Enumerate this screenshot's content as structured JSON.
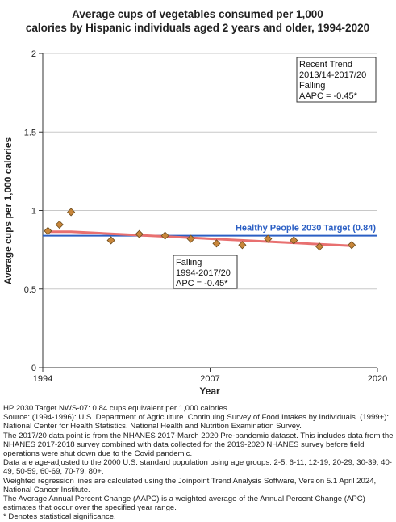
{
  "chart_data": {
    "type": "scatter",
    "title_lines": [
      "Average cups of vegetables consumed per 1,000",
      "calories by Hispanic individuals aged 2 years and older, 1994-2020"
    ],
    "xlabel": "Year",
    "ylabel": "Average cups per 1,000 calories",
    "xlim": [
      1994,
      2020
    ],
    "ylim": [
      0,
      2
    ],
    "x_ticks": [
      1994,
      2007,
      2020
    ],
    "x_tick_labels": [
      "1994",
      "2007",
      "2020"
    ],
    "y_ticks": [
      0,
      0.5,
      1,
      1.5,
      2
    ],
    "y_tick_labels": [
      "0",
      "0.5",
      "1",
      "1.5",
      "2"
    ],
    "grid": "horizontal",
    "points": [
      {
        "x": 1994.4,
        "y": 0.87
      },
      {
        "x": 1995.3,
        "y": 0.91
      },
      {
        "x": 1996.2,
        "y": 0.99
      },
      {
        "x": 1999.3,
        "y": 0.81
      },
      {
        "x": 2001.5,
        "y": 0.85
      },
      {
        "x": 2003.5,
        "y": 0.84
      },
      {
        "x": 2005.5,
        "y": 0.82
      },
      {
        "x": 2007.5,
        "y": 0.79
      },
      {
        "x": 2009.5,
        "y": 0.78
      },
      {
        "x": 2011.5,
        "y": 0.82
      },
      {
        "x": 2013.5,
        "y": 0.81
      },
      {
        "x": 2015.5,
        "y": 0.77
      },
      {
        "x": 2018.0,
        "y": 0.78
      }
    ],
    "point_color": "#c8863a",
    "trend_line": {
      "x": [
        1994.4,
        1996.2,
        2018.0
      ],
      "y": [
        0.865,
        0.865,
        0.775
      ],
      "color": "#e87070"
    },
    "target": {
      "value": 0.84,
      "label": "Healthy People 2030 Target (0.84)",
      "color": "#2b5fc4"
    },
    "annotations": [
      {
        "lines": [
          "Falling",
          "1994-2017/20",
          "APC = -0.45*"
        ]
      },
      {
        "lines": [
          "Recent Trend",
          "2013/14-2017/20",
          "Falling",
          "AAPC = -0.45*"
        ]
      }
    ]
  },
  "footnotes": [
    "HP 2030 Target NWS-07: 0.84 cups equivalent per 1,000 calories.",
    "Source: (1994-1996): U.S. Department of Agriculture. Continuing Survey of Food Intakes by Individuals. (1999+): National Center for Health Statistics. National Health and Nutrition Examination Survey.",
    "The 2017/20 data point is from the NHANES 2017-March 2020 Pre-pandemic dataset. This includes data from the NHANES 2017-2018 survey combined with data collected for the 2019-2020 NHANES survey before field operations were shut down due to the Covid pandemic.",
    "Data are age-adjusted to the 2000 U.S. standard population using age groups: 2-5, 6-11, 12-19, 20-29, 30-39, 40-49, 50-59, 60-69, 70-79, 80+.",
    "Weighted regression lines are calculated using the Joinpoint Trend Analysis Software, Version 5.1 April 2024, National Cancer Institute.",
    "The Average Annual Percent Change (AAPC) is a weighted average of the Annual Percent Change (APC) estimates that occur over the specified year range.",
    "* Denotes statistical significance."
  ]
}
